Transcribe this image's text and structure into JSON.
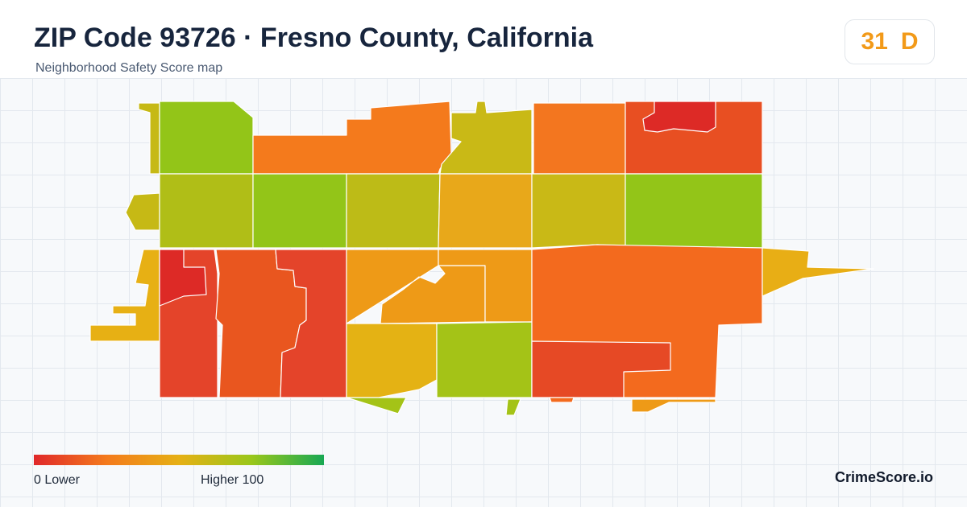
{
  "header": {
    "title": "ZIP Code 93726 · Fresno County, California",
    "subtitle": "Neighborhood Safety Score map"
  },
  "score_badge": {
    "score": "31",
    "grade": "D",
    "color": "#f29a19"
  },
  "legend": {
    "min_label": "0  Lower",
    "max_label": "Higher  100",
    "gradient_colors": [
      "#e0282a",
      "#f47a1c",
      "#e6b015",
      "#9ac71a",
      "#18a853"
    ]
  },
  "brand": "CrimeScore.io",
  "map": {
    "regions": [
      {
        "name": "region-northwest",
        "color": "#93c518"
      },
      {
        "name": "region-north-central",
        "color": "#f47a1c"
      },
      {
        "name": "region-north",
        "color": "#c9b916"
      },
      {
        "name": "region-north-east",
        "color": "#f3761f"
      },
      {
        "name": "region-northeast",
        "color": "#e84f22"
      },
      {
        "name": "region-northeast-pocket",
        "color": "#dd2a26"
      },
      {
        "name": "region-west-fringe",
        "color": "#c6b915"
      },
      {
        "name": "region-west-central",
        "color": "#b0be17"
      },
      {
        "name": "region-central-west",
        "color": "#93c518"
      },
      {
        "name": "region-central",
        "color": "#bdbb17"
      },
      {
        "name": "region-central-mid",
        "color": "#e8a81a"
      },
      {
        "name": "region-central-east",
        "color": "#c9b916"
      },
      {
        "name": "region-east",
        "color": "#93c518"
      },
      {
        "name": "region-southwest",
        "color": "#e4442a"
      },
      {
        "name": "region-southwest-pocket",
        "color": "#dd2a26"
      },
      {
        "name": "region-south-central-west",
        "color": "#e9561f"
      },
      {
        "name": "region-south-central",
        "color": "#ee9a17"
      },
      {
        "name": "region-south-mid",
        "color": "#e4b214"
      },
      {
        "name": "region-south-green",
        "color": "#a4c317"
      },
      {
        "name": "region-southeast",
        "color": "#f36a1e"
      },
      {
        "name": "region-southeast-red",
        "color": "#e64925"
      },
      {
        "name": "region-east-spur",
        "color": "#e8ae15"
      },
      {
        "name": "region-west-spurs",
        "color": "#e7b014"
      }
    ]
  }
}
